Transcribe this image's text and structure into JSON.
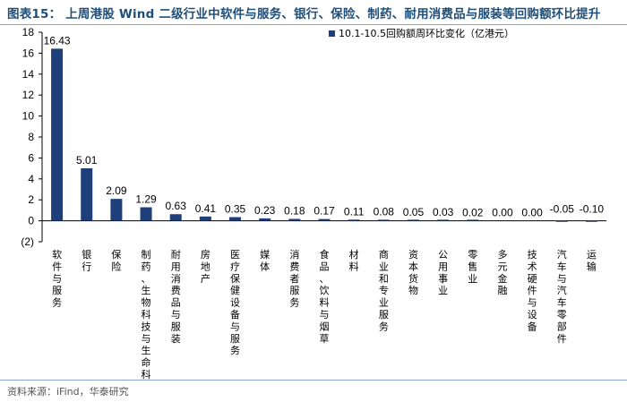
{
  "title": "图表15：  上周港股 Wind 二级行业中软件与服务、银行、保险、制药、耐用消费品与服装等回购额环比提升",
  "source": "资料来源：iFind，华泰研究",
  "chart_data": {
    "type": "bar",
    "title": "",
    "xlabel": "",
    "ylabel": "",
    "ylim": [
      -2,
      18
    ],
    "yticks": [
      -2,
      0,
      2,
      4,
      6,
      8,
      10,
      12,
      14,
      16,
      18
    ],
    "ytick_labels": [
      "(2)",
      "0",
      "2",
      "4",
      "6",
      "8",
      "10",
      "12",
      "14",
      "16",
      "18"
    ],
    "bar_color": "#1f3f7a",
    "legend_position": "top-right",
    "grid": false,
    "categories": [
      "软件与服务",
      "银行",
      "保险",
      "制药、生物科技与生命科学",
      "耐用消费品与服装",
      "房地产",
      "医疗保健设备与服务",
      "媒体",
      "消费者服务",
      "食品、饮料与烟草",
      "材料",
      "商业和专业服务",
      "资本货物",
      "公用事业",
      "零售业",
      "多元金融",
      "技术硬件与设备",
      "汽车与汽车零部件",
      "运输"
    ],
    "series": [
      {
        "name": "10.1-10.5回购额周环比变化（亿港元）",
        "values": [
          16.43,
          5.01,
          2.09,
          1.29,
          0.63,
          0.41,
          0.35,
          0.23,
          0.18,
          0.17,
          0.11,
          0.08,
          0.05,
          0.03,
          0.02,
          0.0,
          0.0,
          -0.05,
          -0.1
        ],
        "labels": [
          "16.43",
          "5.01",
          "2.09",
          "1.29",
          "0.63",
          "0.41",
          "0.35",
          "0.23",
          "0.18",
          "0.17",
          "0.11",
          "0.08",
          "0.05",
          "0.03",
          "0.02",
          "0.00",
          "0.00",
          "-0.05",
          "-0.10"
        ]
      }
    ]
  }
}
